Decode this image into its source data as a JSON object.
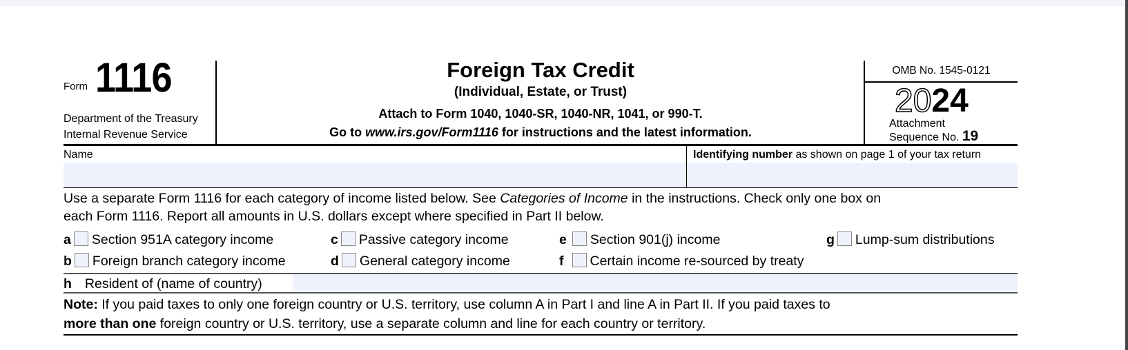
{
  "header": {
    "form_word": "Form",
    "form_number": "1116",
    "department": "Department of the Treasury",
    "service": "Internal Revenue Service",
    "title": "Foreign Tax Credit",
    "subtitle": "(Individual, Estate, or Trust)",
    "attach": "Attach to Form 1040, 1040-SR, 1040-NR, 1041, or 990-T.",
    "goto_prefix": "Go to ",
    "goto_url": "www.irs.gov/Form1116",
    "goto_suffix": " for instructions and the latest information.",
    "omb": "OMB No. 1545-0121",
    "year_outline": "20",
    "year_bold": "24",
    "attachment": "Attachment",
    "sequence_label": "Sequence No.",
    "sequence_no": "19"
  },
  "name_row": {
    "name_label": "Name",
    "name_value": "",
    "id_label_bold": "Identifying number",
    "id_label_rest": " as shown on page 1 of your tax return",
    "id_value": ""
  },
  "instructions": {
    "line1_a": "Use a separate Form 1116 for each category of income listed below. See ",
    "line1_italic": "Categories of Income",
    "line1_b": " in the instructions. Check only one box on",
    "line2": "each Form 1116. Report all amounts in U.S. dollars except where specified in Part II below."
  },
  "categories": [
    {
      "letter": "a",
      "label": "Section 951A category income",
      "checked": false
    },
    {
      "letter": "b",
      "label": "Foreign branch category income",
      "checked": false
    },
    {
      "letter": "c",
      "label": "Passive category income",
      "checked": false
    },
    {
      "letter": "d",
      "label": "General category income",
      "checked": false
    },
    {
      "letter": "e",
      "label": "Section 901(j) income",
      "checked": false
    },
    {
      "letter": "f",
      "label": "Certain income re-sourced by treaty",
      "checked": false
    },
    {
      "letter": "g",
      "label": "Lump-sum distributions",
      "checked": false
    }
  ],
  "resident": {
    "letter": "h",
    "label": "Resident of (name of country)",
    "value": ""
  },
  "note": {
    "bold1": "Note:",
    "text1": " If you paid taxes to only one foreign country or U.S. territory, use column A in Part I and line A in Part II. If you paid taxes to",
    "bold2": "more than one",
    "text2": " foreign country or U.S. territory, use a separate column and line for each country or territory."
  }
}
